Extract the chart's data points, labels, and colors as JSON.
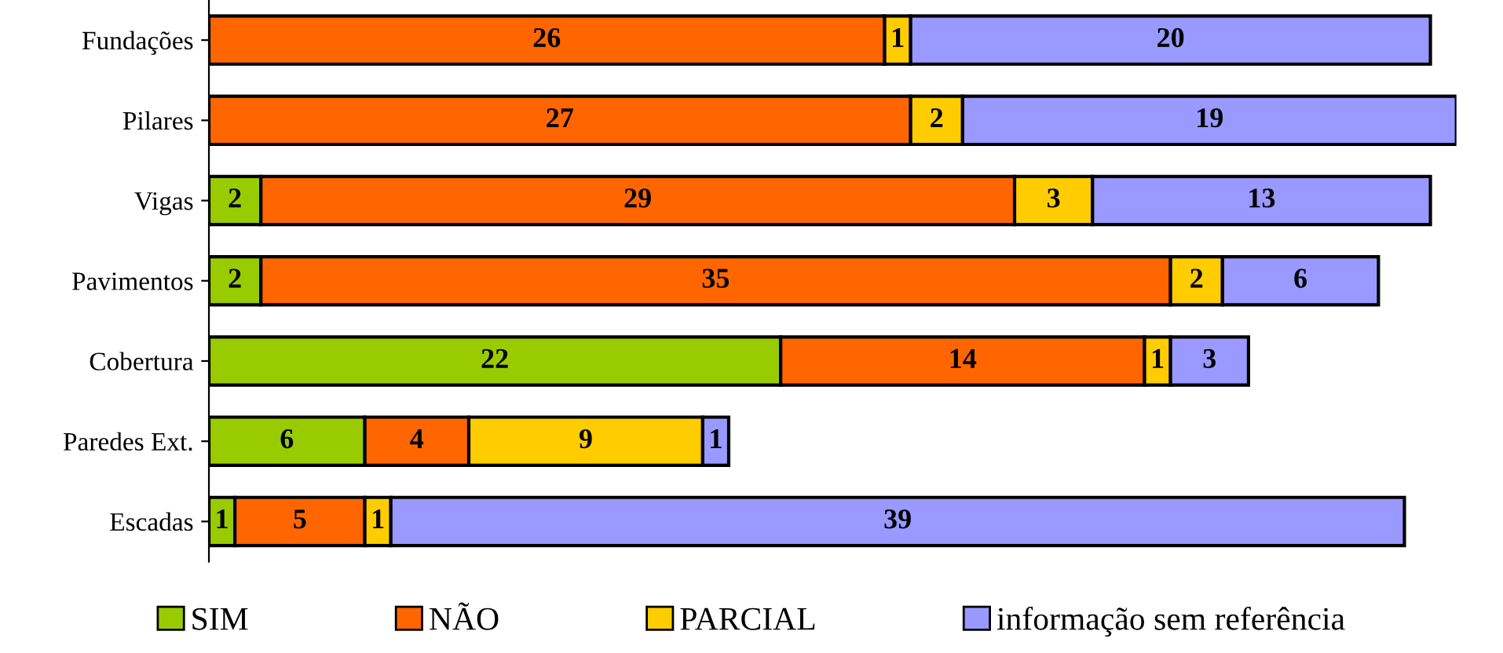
{
  "chart_data": {
    "type": "bar",
    "orientation": "horizontal",
    "stacked": true,
    "data_labels": true,
    "legend": "bottom",
    "grid": false,
    "categories": [
      "Fundações",
      "Pilares",
      "Vigas",
      "Pavimentos",
      "Cobertura",
      "Paredes Ext.",
      "Escadas"
    ],
    "series": [
      {
        "name": "SIM",
        "color": "#99cc00",
        "values": [
          null,
          null,
          2,
          2,
          22,
          6,
          1
        ]
      },
      {
        "name": "NÃO",
        "color": "#ff6600",
        "values": [
          26,
          27,
          29,
          35,
          14,
          4,
          5
        ]
      },
      {
        "name": "PARCIAL",
        "color": "#ffcc00",
        "values": [
          1,
          2,
          3,
          2,
          1,
          9,
          1
        ]
      },
      {
        "name": "informação sem referência",
        "color": "#9999ff",
        "values": [
          20,
          19,
          13,
          6,
          3,
          1,
          39
        ]
      }
    ]
  }
}
